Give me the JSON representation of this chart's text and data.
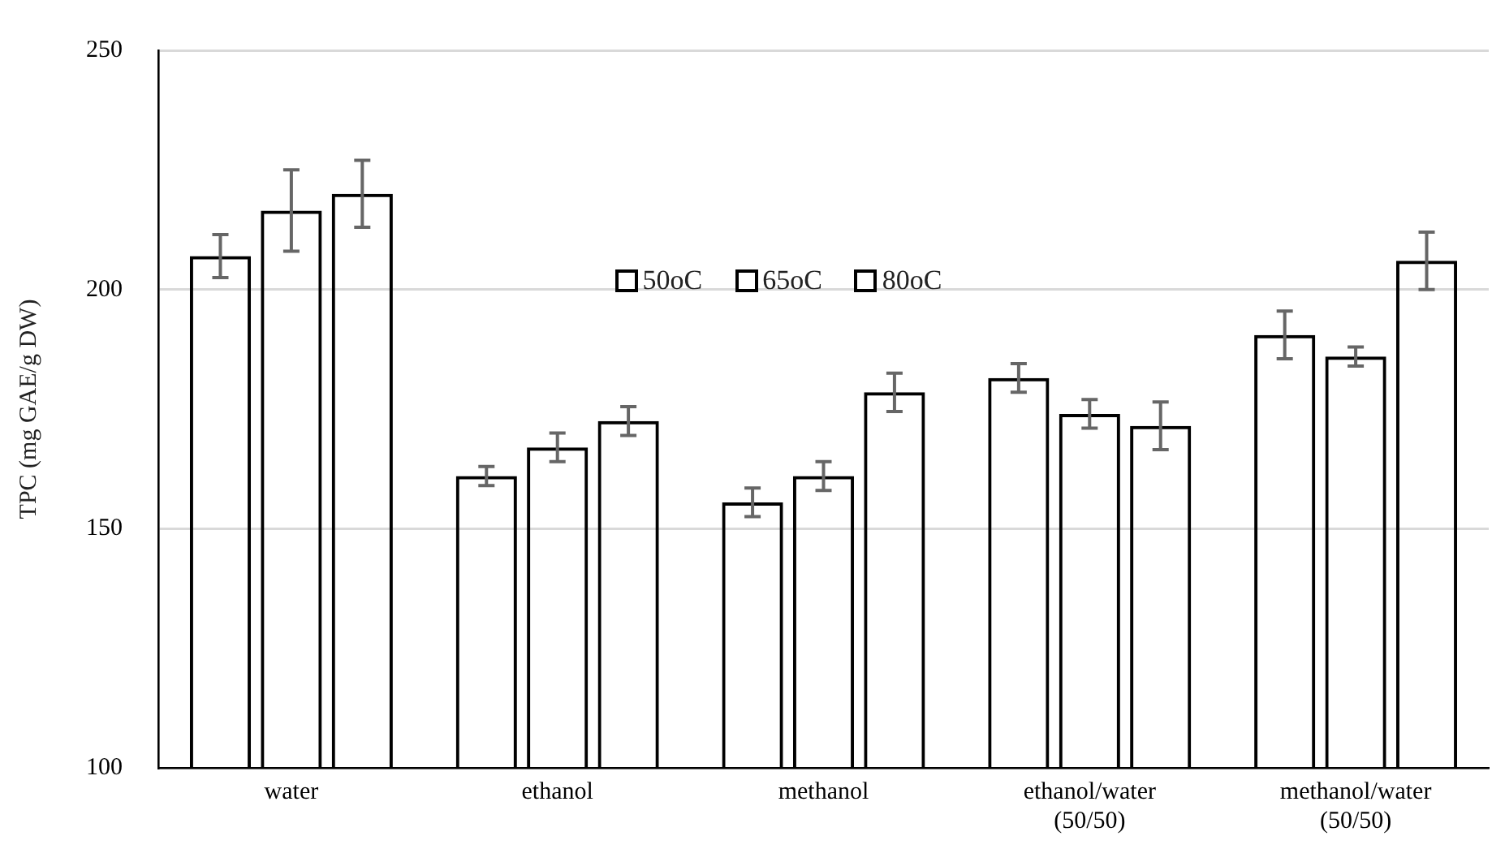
{
  "chart_data": {
    "type": "bar",
    "ylabel": "TPC (mg GAE/g DW)",
    "categories": [
      "water",
      "ethanol",
      "methanol",
      "ethanol/water (50/50)",
      "methanol/water (50/50)"
    ],
    "series": [
      {
        "name": "50oC",
        "color": "#000000",
        "values": [
          207,
          161,
          155.5,
          181.5,
          190.5
        ],
        "errors": [
          4.5,
          2,
          3,
          3,
          5
        ]
      },
      {
        "name": "65oC",
        "color": "#000000",
        "values": [
          216.5,
          167,
          161,
          174,
          186
        ],
        "errors": [
          8.5,
          3,
          3,
          3,
          2
        ]
      },
      {
        "name": "80oC",
        "color": "#000000",
        "values": [
          220,
          172.5,
          178.5,
          171.5,
          206
        ],
        "errors": [
          7,
          3,
          4,
          5,
          6
        ]
      }
    ],
    "ylim": [
      100,
      250
    ],
    "yticks": [
      100,
      150,
      200,
      250
    ],
    "grid": "y",
    "legend": "top"
  }
}
